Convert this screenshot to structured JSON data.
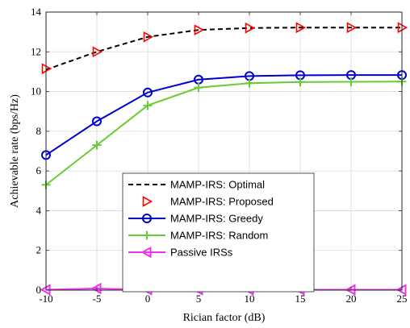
{
  "chart_data": {
    "type": "line",
    "title": "",
    "xlabel": "Rician factor (dB)",
    "ylabel": "Achievable rate (bps/Hz)",
    "xlim": [
      -10,
      25
    ],
    "ylim": [
      0,
      14
    ],
    "xticks": [
      -10,
      -5,
      0,
      5,
      10,
      15,
      20,
      25
    ],
    "yticks": [
      0,
      2,
      4,
      6,
      8,
      10,
      12,
      14
    ],
    "grid": true,
    "legend_position": "lower-center",
    "x": [
      -10,
      -5,
      0,
      5,
      10,
      15,
      20,
      25
    ],
    "series": [
      {
        "name": "MAMP-IRS: Optimal",
        "values": [
          11.1,
          12.0,
          12.75,
          13.1,
          13.2,
          13.22,
          13.22,
          13.22
        ],
        "color": "#000000",
        "line": "dashed",
        "marker": "none"
      },
      {
        "name": "MAMP-IRS: Proposed",
        "values": [
          11.15,
          12.0,
          12.75,
          13.1,
          13.2,
          13.22,
          13.22,
          13.22
        ],
        "color": "#ff0000",
        "line": "none",
        "marker": "triangle-right"
      },
      {
        "name": "MAMP-IRS: Greedy",
        "values": [
          6.8,
          8.5,
          9.95,
          10.6,
          10.78,
          10.82,
          10.83,
          10.83
        ],
        "color": "#0000cc",
        "line": "solid",
        "marker": "circle"
      },
      {
        "name": "MAMP-IRS: Random",
        "values": [
          5.3,
          7.3,
          9.3,
          10.2,
          10.42,
          10.48,
          10.49,
          10.5
        ],
        "color": "#66cc33",
        "line": "solid",
        "marker": "plus"
      },
      {
        "name": "Passive IRSs",
        "values": [
          0.02,
          0.08,
          0.02,
          0.02,
          0.02,
          0.02,
          0.02,
          0.02
        ],
        "color": "#ee33ee",
        "line": "solid",
        "marker": "triangle-left"
      }
    ]
  }
}
